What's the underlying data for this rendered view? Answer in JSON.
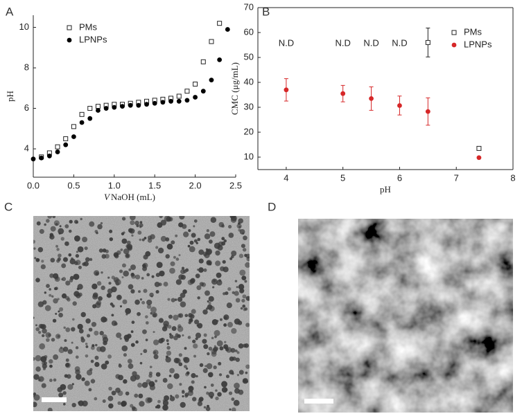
{
  "chart_data": [
    {
      "type": "scatter",
      "panel_label": "A",
      "x_label_var": "V",
      "x_label": "NaOH (mL)",
      "y_label": "pH",
      "xlim": [
        0,
        2.5
      ],
      "ylim": [
        2.6,
        10.6
      ],
      "xticks": [
        {
          "value": 0,
          "label": "0.0"
        },
        0.5,
        {
          "value": 1,
          "label": "1.0"
        },
        1.5,
        {
          "value": 2,
          "label": "2.0"
        },
        2.5
      ],
      "yticks": [
        4,
        6,
        8,
        10
      ],
      "box": false,
      "series": [
        {
          "name": "PMs",
          "color": "#222222",
          "marker": "square-open",
          "x": [
            0.1,
            0.2,
            0.3,
            0.4,
            0.5,
            0.6,
            0.7,
            0.8,
            0.9,
            1.0,
            1.1,
            1.2,
            1.3,
            1.4,
            1.5,
            1.6,
            1.7,
            1.8,
            1.9,
            2.0,
            2.1,
            2.2,
            2.3
          ],
          "values": [
            3.6,
            3.8,
            4.1,
            4.5,
            5.1,
            5.7,
            6.0,
            6.1,
            6.15,
            6.2,
            6.2,
            6.25,
            6.3,
            6.35,
            6.4,
            6.45,
            6.5,
            6.6,
            6.85,
            7.2,
            8.3,
            9.3,
            10.2
          ]
        },
        {
          "name": "LPNPs",
          "color": "#000000",
          "marker": "circle",
          "x": [
            0,
            0.1,
            0.2,
            0.3,
            0.4,
            0.5,
            0.6,
            0.7,
            0.8,
            0.9,
            1.0,
            1.1,
            1.2,
            1.3,
            1.4,
            1.5,
            1.6,
            1.7,
            1.8,
            1.9,
            2.0,
            2.1,
            2.2,
            2.3,
            2.4
          ],
          "values": [
            3.5,
            3.55,
            3.65,
            3.85,
            4.2,
            4.6,
            5.3,
            5.5,
            5.9,
            6.0,
            6.05,
            6.1,
            6.15,
            6.15,
            6.2,
            6.25,
            6.3,
            6.35,
            6.35,
            6.4,
            6.55,
            6.85,
            7.4,
            8.4,
            9.9
          ]
        }
      ]
    },
    {
      "type": "errorbar",
      "panel_label": "B",
      "x_label": "pH",
      "y_label": "CMC (μg/mL)",
      "xlim": [
        3.5,
        8
      ],
      "ylim": [
        5,
        70
      ],
      "xticks": [
        4,
        5,
        6,
        7,
        8
      ],
      "yticks": [
        10,
        20,
        30,
        40,
        50,
        60,
        70
      ],
      "box": true,
      "annotations": [
        {
          "text": "N.D",
          "x": 4
        },
        {
          "text": "N.D",
          "x": 5
        },
        {
          "text": "N.D",
          "x": 5.5
        },
        {
          "text": "N.D",
          "x": 6
        }
      ],
      "series": [
        {
          "name": "PMs",
          "color": "#222222",
          "marker": "square-open",
          "x": [
            6.5,
            7.4
          ],
          "values": [
            56,
            13.5
          ],
          "errors": [
            5.8,
            0.5
          ]
        },
        {
          "name": "LPNPs",
          "color": "#d62728",
          "marker": "circle",
          "x": [
            4,
            5,
            5.5,
            6,
            6.5,
            7.4
          ],
          "values": [
            37,
            35.5,
            33.5,
            30.7,
            28.3,
            9.8
          ],
          "errors": [
            4.5,
            3.3,
            4.7,
            3.8,
            5.5,
            0.3
          ]
        }
      ]
    }
  ],
  "images": [
    {
      "panel_label": "C"
    },
    {
      "panel_label": "D"
    }
  ]
}
